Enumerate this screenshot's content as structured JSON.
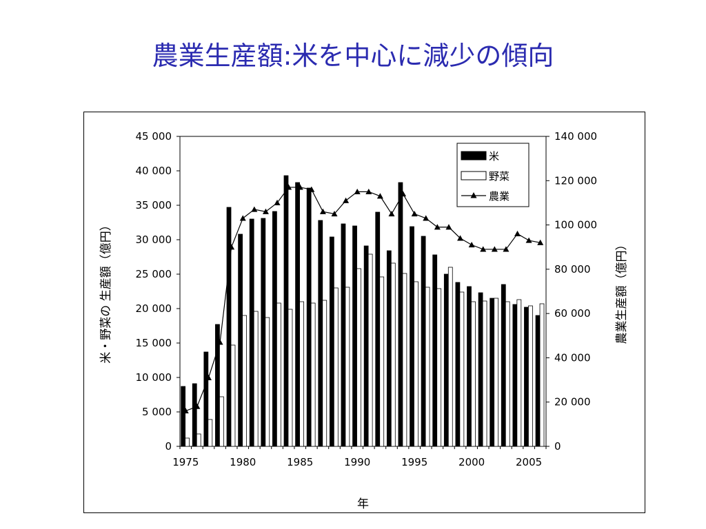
{
  "title": "農業生産額:米を中心に減少の傾向",
  "chart_data": {
    "type": "bar",
    "x": [
      1975,
      1976,
      1977,
      1978,
      1979,
      1980,
      1981,
      1982,
      1983,
      1984,
      1985,
      1986,
      1987,
      1988,
      1989,
      1990,
      1991,
      1992,
      1993,
      1994,
      1995,
      1996,
      1997,
      1998,
      1999,
      2000,
      2001,
      2002,
      2003,
      2004,
      2005,
      2006
    ],
    "xticks": [
      "1975",
      "1980",
      "1985",
      "1990",
      "1995",
      "2000",
      "2005"
    ],
    "xlabel": "年",
    "ylabel_left": "米・野菜の 生産額（億円）",
    "ylabel_right": "農業生産額（億円）",
    "ylim_left": [
      0,
      45000
    ],
    "ylim_right": [
      0,
      140000
    ],
    "yticks_left": [
      "0",
      "5 000",
      "10 000",
      "15 000",
      "20 000",
      "25 000",
      "30 000",
      "35 000",
      "40 000",
      "45 000"
    ],
    "yticks_right": [
      "0",
      "20 000",
      "40 000",
      "60 000",
      "80 000",
      "100 000",
      "120 000",
      "140 000"
    ],
    "legend_position": "top-right",
    "grid": false,
    "series": [
      {
        "name": "米",
        "type": "bar",
        "axis": "left",
        "color": "#000000",
        "values": [
          8700,
          9100,
          13700,
          17700,
          34700,
          30800,
          33000,
          33100,
          34100,
          39300,
          38300,
          37500,
          32800,
          30400,
          32300,
          32000,
          29100,
          34000,
          28400,
          38300,
          31900,
          30500,
          27800,
          25000,
          23800,
          23200,
          22300,
          21500,
          23500,
          20600,
          20200,
          19000
        ]
      },
      {
        "name": "野菜",
        "type": "bar",
        "axis": "left",
        "color": "#ffffff",
        "values": [
          1200,
          1800,
          3900,
          7200,
          14700,
          19000,
          19600,
          18700,
          20800,
          19900,
          21000,
          20800,
          21200,
          23000,
          23100,
          25800,
          27900,
          24600,
          26600,
          25100,
          23900,
          23100,
          22900,
          26000,
          22400,
          21000,
          21100,
          21500,
          21000,
          21300,
          20400,
          20700
        ]
      },
      {
        "name": "農業",
        "type": "line",
        "axis": "right",
        "color": "#000000",
        "marker": "triangle",
        "values": [
          16000,
          18000,
          31000,
          47000,
          90000,
          103000,
          107000,
          106000,
          110000,
          117000,
          117000,
          116000,
          106000,
          105000,
          111000,
          115000,
          115000,
          113000,
          105000,
          114000,
          105000,
          103000,
          99000,
          99000,
          94000,
          91000,
          89000,
          89000,
          89000,
          96000,
          93000,
          92000
        ]
      }
    ]
  }
}
